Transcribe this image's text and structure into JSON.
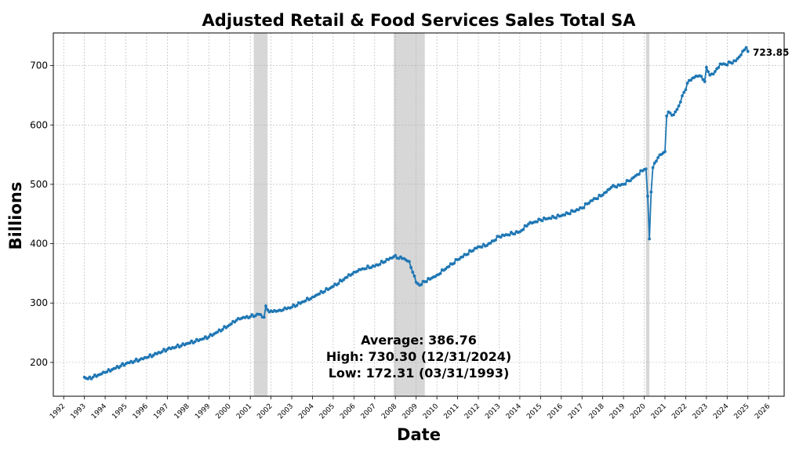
{
  "chart_data": {
    "type": "line",
    "title": "Adjusted Retail & Food Services Sales Total SA",
    "xlabel": "Date",
    "ylabel": "Billions",
    "xlim": [
      1991.5,
      2026.75
    ],
    "ylim": [
      143,
      755
    ],
    "yticks": [
      200,
      300,
      400,
      500,
      600,
      700
    ],
    "xticks": [
      "1992",
      "1993",
      "1994",
      "1995",
      "1996",
      "1997",
      "1998",
      "1999",
      "2000",
      "2001",
      "2002",
      "2003",
      "2004",
      "2005",
      "2006",
      "2007",
      "2008",
      "2009",
      "2010",
      "2011",
      "2012",
      "2013",
      "2014",
      "2015",
      "2016",
      "2017",
      "2018",
      "2019",
      "2020",
      "2021",
      "2022",
      "2023",
      "2024",
      "2025",
      "2026"
    ],
    "grid": true,
    "color": "#1f77b4",
    "recessions": [
      {
        "start": "2001-03",
        "end": "2001-11"
      },
      {
        "start": "2007-12",
        "end": "2009-06"
      },
      {
        "start": "2020-02",
        "end": "2020-04"
      }
    ],
    "series": [
      {
        "anchors": [
          [
            "1993-01",
            175
          ],
          [
            "1993-03",
            172.31
          ],
          [
            "1994-01",
            183
          ],
          [
            "1995-01",
            198
          ],
          [
            "1996-01",
            208
          ],
          [
            "1997-01",
            222
          ],
          [
            "1998-01",
            232
          ],
          [
            "1999-01",
            243
          ],
          [
            "2000-01",
            263
          ],
          [
            "2000-06",
            274
          ],
          [
            "2001-01",
            277
          ],
          [
            "2001-06",
            281
          ],
          [
            "2001-09",
            276
          ],
          [
            "2001-10",
            295
          ],
          [
            "2001-12",
            285
          ],
          [
            "2002-06",
            288
          ],
          [
            "2003-01",
            293
          ],
          [
            "2004-01",
            310
          ],
          [
            "2005-01",
            328
          ],
          [
            "2006-01",
            352
          ],
          [
            "2006-06",
            358
          ],
          [
            "2007-01",
            362
          ],
          [
            "2007-12",
            378
          ],
          [
            "2008-06",
            375
          ],
          [
            "2008-09",
            370
          ],
          [
            "2008-11",
            352
          ],
          [
            "2009-01",
            335
          ],
          [
            "2009-03",
            330
          ],
          [
            "2009-06",
            336
          ],
          [
            "2010-01",
            347
          ],
          [
            "2011-01",
            373
          ],
          [
            "2012-01",
            395
          ],
          [
            "2012-06",
            397
          ],
          [
            "2013-01",
            412
          ],
          [
            "2014-01",
            420
          ],
          [
            "2014-06",
            433
          ],
          [
            "2015-01",
            440
          ],
          [
            "2015-06",
            443
          ],
          [
            "2016-01",
            447
          ],
          [
            "2017-01",
            460
          ],
          [
            "2017-06",
            472
          ],
          [
            "2018-01",
            482
          ],
          [
            "2018-06",
            495
          ],
          [
            "2019-01",
            500
          ],
          [
            "2019-06",
            510
          ],
          [
            "2020-01",
            525
          ],
          [
            "2020-02",
            526
          ],
          [
            "2020-03",
            480
          ],
          [
            "2020-04",
            408
          ],
          [
            "2020-05",
            487
          ],
          [
            "2020-06",
            528
          ],
          [
            "2020-09",
            545
          ],
          [
            "2020-12",
            553
          ],
          [
            "2021-01",
            555
          ],
          [
            "2021-02",
            615
          ],
          [
            "2021-03",
            622
          ],
          [
            "2021-06",
            617
          ],
          [
            "2021-09",
            632
          ],
          [
            "2021-12",
            655
          ],
          [
            "2022-03",
            675
          ],
          [
            "2022-06",
            680
          ],
          [
            "2022-09",
            683
          ],
          [
            "2022-12",
            673
          ],
          [
            "2023-01",
            697
          ],
          [
            "2023-03",
            684
          ],
          [
            "2023-06",
            690
          ],
          [
            "2023-09",
            703
          ],
          [
            "2023-12",
            702
          ],
          [
            "2024-03",
            705
          ],
          [
            "2024-06",
            708
          ],
          [
            "2024-09",
            718
          ],
          [
            "2024-12",
            730.3
          ],
          [
            "2025-01",
            723.85
          ]
        ]
      }
    ],
    "last_value_label": "723.85",
    "stats": {
      "average": "Average: 386.76",
      "high": "High: 730.30 (12/31/2024)",
      "low": "Low: 172.31 (03/31/1993)"
    }
  }
}
